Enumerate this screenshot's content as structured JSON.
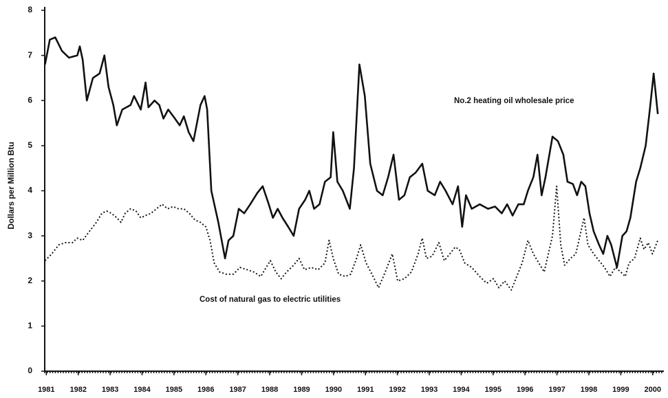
{
  "chart_data": {
    "type": "line",
    "ylabel": "Dollars per Million Btu",
    "xlim": [
      1980.95,
      2000.35
    ],
    "ylim": [
      0,
      8
    ],
    "xticks": [
      1981,
      1982,
      1983,
      1984,
      1985,
      1986,
      1987,
      1988,
      1989,
      1990,
      1991,
      1992,
      1993,
      1994,
      1995,
      1996,
      1997,
      1998,
      1999,
      2000
    ],
    "yticks": [
      0,
      1,
      2,
      3,
      4,
      5,
      6,
      7,
      8
    ],
    "grid": false,
    "series": [
      {
        "name": "No.2 heating oil wholesale price",
        "color": "#111111",
        "style": "solid",
        "x": [
          1980.96,
          1981.11,
          1981.28,
          1981.49,
          1981.71,
          1981.97,
          1982.05,
          1982.14,
          1982.27,
          1982.46,
          1982.67,
          1982.82,
          1982.95,
          1983.1,
          1983.21,
          1983.38,
          1983.64,
          1983.75,
          1983.96,
          1984.11,
          1984.2,
          1984.39,
          1984.54,
          1984.67,
          1984.82,
          1985.03,
          1985.18,
          1985.31,
          1985.46,
          1985.61,
          1985.83,
          1985.96,
          1986.04,
          1986.17,
          1986.39,
          1986.6,
          1986.71,
          1986.86,
          1987.03,
          1987.2,
          1987.39,
          1987.61,
          1987.78,
          1987.97,
          1988.1,
          1988.25,
          1988.4,
          1988.58,
          1988.75,
          1988.92,
          1989.11,
          1989.24,
          1989.39,
          1989.56,
          1989.73,
          1989.91,
          1989.99,
          1990.12,
          1990.29,
          1990.51,
          1990.64,
          1990.81,
          1990.98,
          1991.15,
          1991.36,
          1991.54,
          1991.71,
          1991.88,
          1992.05,
          1992.22,
          1992.39,
          1992.57,
          1992.78,
          1992.95,
          1993.17,
          1993.34,
          1993.51,
          1993.73,
          1993.9,
          1994.03,
          1994.15,
          1994.33,
          1994.58,
          1994.84,
          1995.06,
          1995.27,
          1995.44,
          1995.61,
          1995.79,
          1995.96,
          1996.09,
          1996.26,
          1996.39,
          1996.52,
          1996.64,
          1996.86,
          1997.03,
          1997.2,
          1997.33,
          1997.5,
          1997.63,
          1997.76,
          1997.89,
          1998.02,
          1998.15,
          1998.32,
          1998.45,
          1998.58,
          1998.7,
          1998.88,
          1999.05,
          1999.18,
          1999.3,
          1999.48,
          1999.61,
          1999.78,
          1999.91,
          2000.03,
          2000.16
        ],
        "values": [
          6.8,
          7.35,
          7.4,
          7.1,
          6.95,
          7.0,
          7.2,
          6.9,
          6.0,
          6.5,
          6.6,
          7.0,
          6.3,
          5.9,
          5.45,
          5.8,
          5.9,
          6.1,
          5.8,
          6.4,
          5.85,
          6.0,
          5.9,
          5.6,
          5.8,
          5.6,
          5.45,
          5.65,
          5.3,
          5.1,
          5.9,
          6.1,
          5.8,
          4.0,
          3.3,
          2.5,
          2.9,
          3.0,
          3.6,
          3.5,
          3.7,
          3.95,
          4.1,
          3.7,
          3.4,
          3.6,
          3.4,
          3.2,
          3.0,
          3.6,
          3.8,
          4.0,
          3.6,
          3.7,
          4.2,
          4.3,
          5.3,
          4.2,
          4.0,
          3.6,
          4.5,
          6.8,
          6.1,
          4.6,
          4.0,
          3.9,
          4.3,
          4.8,
          3.8,
          3.9,
          4.3,
          4.4,
          4.6,
          4.0,
          3.9,
          4.2,
          4.0,
          3.7,
          4.1,
          3.2,
          3.9,
          3.6,
          3.7,
          3.6,
          3.65,
          3.5,
          3.7,
          3.45,
          3.7,
          3.7,
          4.0,
          4.3,
          4.8,
          3.9,
          4.3,
          5.2,
          5.1,
          4.8,
          4.2,
          4.15,
          3.9,
          4.2,
          4.1,
          3.5,
          3.1,
          2.8,
          2.6,
          3.0,
          2.8,
          2.3,
          3.0,
          3.1,
          3.4,
          4.2,
          4.5,
          5.0,
          5.8,
          6.6,
          5.7
        ]
      },
      {
        "name": "Cost of natural gas to electric utilities",
        "color": "#111111",
        "style": "dotted",
        "x": [
          1980.96,
          1981.17,
          1981.39,
          1981.6,
          1981.82,
          1981.97,
          1982.14,
          1982.35,
          1982.57,
          1982.74,
          1982.89,
          1983.04,
          1983.21,
          1983.34,
          1983.47,
          1983.64,
          1983.81,
          1983.96,
          1984.11,
          1984.28,
          1984.45,
          1984.63,
          1984.8,
          1984.97,
          1985.14,
          1985.31,
          1985.48,
          1985.66,
          1985.83,
          1986.0,
          1986.13,
          1986.26,
          1986.43,
          1986.64,
          1986.86,
          1987.07,
          1987.29,
          1987.5,
          1987.72,
          1987.89,
          1988.02,
          1988.19,
          1988.36,
          1988.53,
          1988.75,
          1988.92,
          1989.09,
          1989.3,
          1989.52,
          1989.73,
          1989.86,
          1989.99,
          1990.16,
          1990.37,
          1990.54,
          1990.72,
          1990.85,
          1991.02,
          1991.24,
          1991.41,
          1991.62,
          1991.84,
          1992.01,
          1992.22,
          1992.44,
          1992.65,
          1992.78,
          1992.91,
          1993.09,
          1993.3,
          1993.47,
          1993.64,
          1993.81,
          1993.94,
          1994.11,
          1994.33,
          1994.58,
          1994.8,
          1995.01,
          1995.18,
          1995.36,
          1995.57,
          1995.74,
          1995.91,
          1996.09,
          1996.26,
          1996.43,
          1996.6,
          1996.73,
          1996.86,
          1996.99,
          1997.12,
          1997.24,
          1997.42,
          1997.59,
          1997.72,
          1997.85,
          1997.97,
          1998.15,
          1998.32,
          1998.49,
          1998.66,
          1998.83,
          1999.0,
          1999.14,
          1999.26,
          1999.43,
          1999.61,
          1999.73,
          1999.86,
          1999.99,
          2000.16
        ],
        "values": [
          2.45,
          2.6,
          2.8,
          2.85,
          2.85,
          2.95,
          2.9,
          3.1,
          3.3,
          3.5,
          3.55,
          3.5,
          3.4,
          3.3,
          3.5,
          3.6,
          3.55,
          3.4,
          3.45,
          3.5,
          3.6,
          3.7,
          3.6,
          3.65,
          3.6,
          3.6,
          3.5,
          3.35,
          3.3,
          3.2,
          2.9,
          2.4,
          2.2,
          2.15,
          2.15,
          2.3,
          2.25,
          2.2,
          2.1,
          2.3,
          2.45,
          2.2,
          2.05,
          2.2,
          2.35,
          2.5,
          2.25,
          2.3,
          2.25,
          2.4,
          2.9,
          2.5,
          2.15,
          2.1,
          2.15,
          2.5,
          2.8,
          2.4,
          2.1,
          1.85,
          2.2,
          2.6,
          2.0,
          2.05,
          2.2,
          2.6,
          2.95,
          2.5,
          2.55,
          2.85,
          2.45,
          2.6,
          2.75,
          2.7,
          2.4,
          2.3,
          2.1,
          1.95,
          2.05,
          1.85,
          2.0,
          1.8,
          2.1,
          2.4,
          2.9,
          2.6,
          2.4,
          2.2,
          2.6,
          3.0,
          4.1,
          2.8,
          2.35,
          2.5,
          2.6,
          3.0,
          3.4,
          2.8,
          2.6,
          2.45,
          2.3,
          2.1,
          2.3,
          2.2,
          2.1,
          2.4,
          2.5,
          2.95,
          2.7,
          2.85,
          2.6,
          2.9
        ]
      }
    ]
  }
}
